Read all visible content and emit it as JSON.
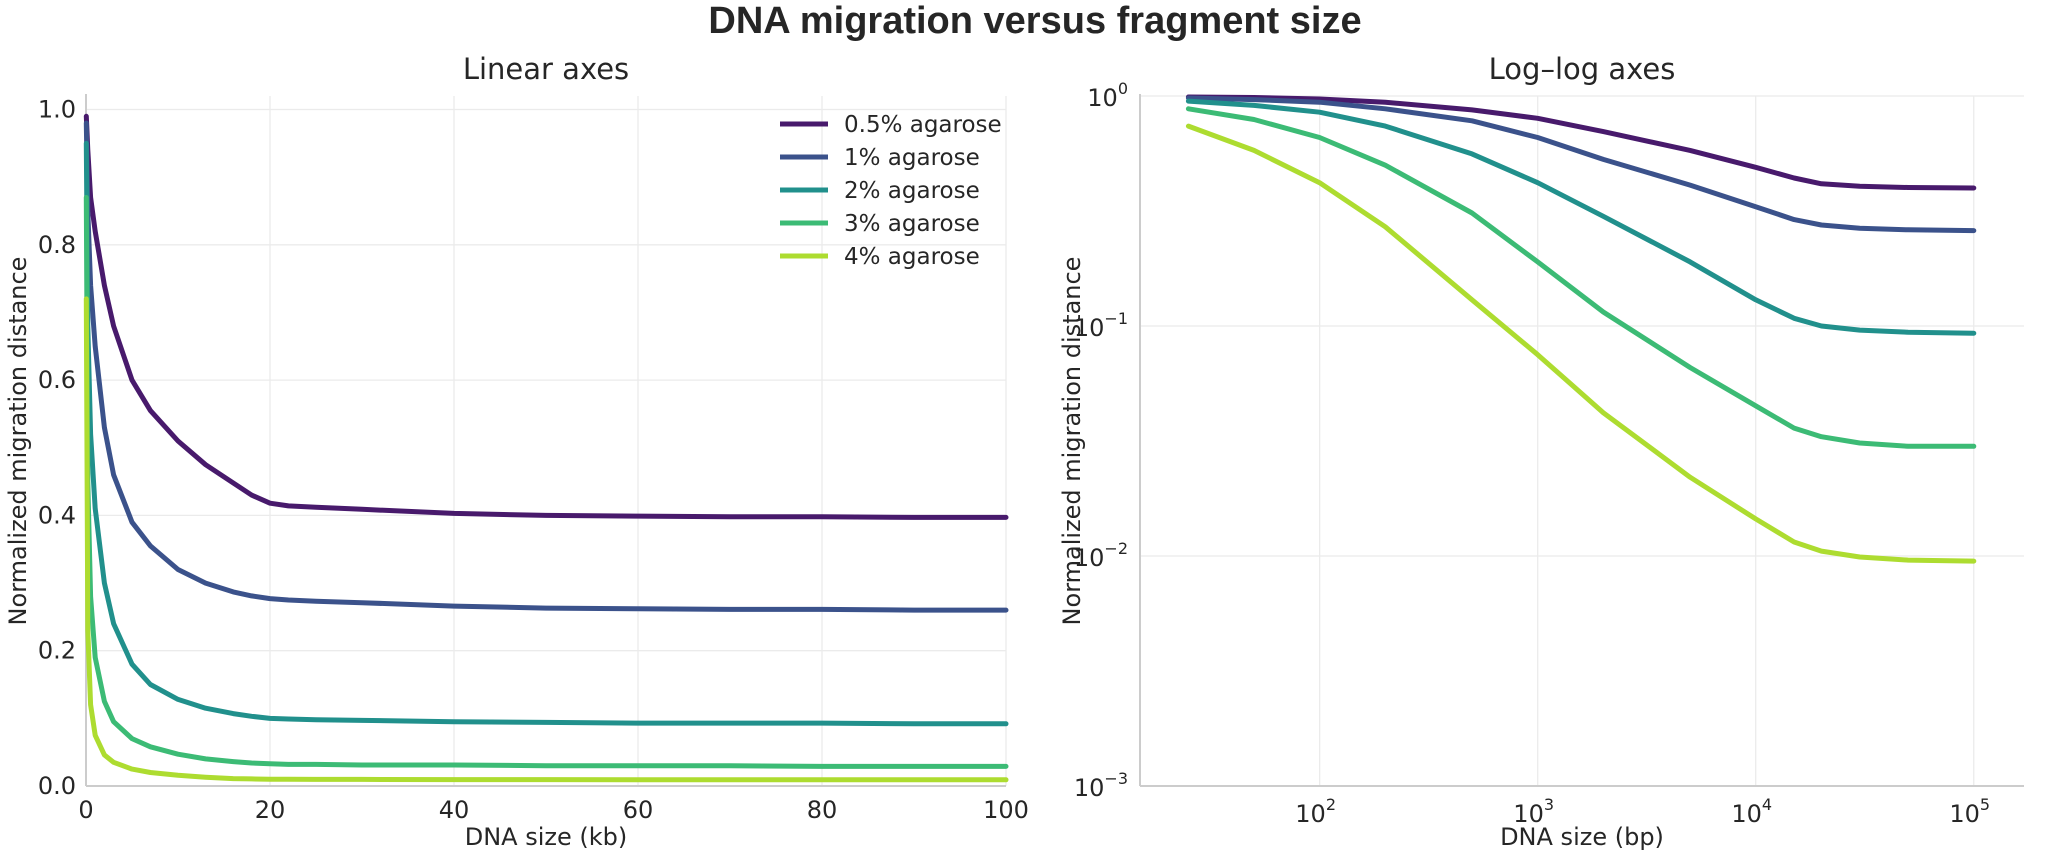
{
  "figure": {
    "title": "DNA migration versus fragment size"
  },
  "chart_data": [
    {
      "type": "line",
      "title": "Linear axes",
      "xlabel": "DNA size (kb)",
      "ylabel": "Normalized migration distance",
      "xscale": "linear",
      "yscale": "linear",
      "xlim": [
        0,
        100
      ],
      "ylim": [
        0,
        1.02
      ],
      "xticks": [
        0,
        20,
        40,
        60,
        80,
        100
      ],
      "xtick_labels": [
        "0",
        "20",
        "40",
        "60",
        "80",
        "100"
      ],
      "yticks": [
        0,
        0.2,
        0.4,
        0.6,
        0.8,
        1.0
      ],
      "ytick_labels": [
        "0.0",
        "0.2",
        "0.4",
        "0.6",
        "0.8",
        "1.0"
      ],
      "grid": true,
      "legend": "top-right",
      "series": [
        {
          "name": "0.5% agarose",
          "color": "#481a6c",
          "x": [
            0.03,
            0.2,
            0.5,
            1,
            2,
            3,
            5,
            7,
            10,
            13,
            16,
            18,
            20,
            22,
            25,
            30,
            40,
            50,
            60,
            70,
            80,
            90,
            100
          ],
          "y": [
            0.99,
            0.94,
            0.87,
            0.82,
            0.74,
            0.68,
            0.6,
            0.555,
            0.51,
            0.475,
            0.448,
            0.43,
            0.418,
            0.414,
            0.412,
            0.409,
            0.403,
            0.4,
            0.399,
            0.398,
            0.398,
            0.397,
            0.397
          ]
        },
        {
          "name": "1% agarose",
          "color": "#3b528b",
          "x": [
            0.03,
            0.2,
            0.5,
            1,
            2,
            3,
            5,
            7,
            10,
            13,
            16,
            18,
            20,
            22,
            25,
            30,
            40,
            50,
            60,
            70,
            80,
            90,
            100
          ],
          "y": [
            0.98,
            0.85,
            0.74,
            0.65,
            0.53,
            0.46,
            0.39,
            0.355,
            0.32,
            0.3,
            0.287,
            0.281,
            0.277,
            0.275,
            0.273,
            0.271,
            0.266,
            0.263,
            0.262,
            0.261,
            0.261,
            0.26,
            0.26
          ]
        },
        {
          "name": "2% agarose",
          "color": "#21908c",
          "x": [
            0.03,
            0.2,
            0.5,
            1,
            2,
            3,
            5,
            7,
            10,
            13,
            16,
            18,
            20,
            22,
            25,
            30,
            40,
            50,
            60,
            70,
            80,
            90,
            100
          ],
          "y": [
            0.95,
            0.68,
            0.52,
            0.41,
            0.3,
            0.24,
            0.18,
            0.15,
            0.128,
            0.115,
            0.107,
            0.103,
            0.1,
            0.099,
            0.098,
            0.097,
            0.095,
            0.094,
            0.093,
            0.093,
            0.093,
            0.092,
            0.092
          ]
        },
        {
          "name": "3% agarose",
          "color": "#3cbb75",
          "x": [
            0.03,
            0.2,
            0.5,
            1,
            2,
            3,
            5,
            7,
            10,
            13,
            16,
            18,
            20,
            22,
            25,
            30,
            40,
            50,
            60,
            70,
            80,
            90,
            100
          ],
          "y": [
            0.87,
            0.45,
            0.28,
            0.19,
            0.125,
            0.095,
            0.07,
            0.058,
            0.047,
            0.04,
            0.036,
            0.034,
            0.033,
            0.032,
            0.032,
            0.031,
            0.031,
            0.03,
            0.03,
            0.03,
            0.029,
            0.029,
            0.029
          ]
        },
        {
          "name": "4% agarose",
          "color": "#addc30",
          "x": [
            0.03,
            0.2,
            0.5,
            1,
            2,
            3,
            5,
            7,
            10,
            13,
            16,
            18,
            20,
            22,
            25,
            30,
            40,
            50,
            60,
            70,
            80,
            90,
            100
          ],
          "y": [
            0.72,
            0.23,
            0.12,
            0.075,
            0.046,
            0.035,
            0.025,
            0.02,
            0.016,
            0.013,
            0.011,
            0.0105,
            0.01,
            0.0099,
            0.0098,
            0.0097,
            0.0095,
            0.0094,
            0.0093,
            0.0093,
            0.0092,
            0.0092,
            0.0092
          ]
        }
      ]
    },
    {
      "type": "line",
      "title": "Log–log axes",
      "xlabel": "DNA size (bp)",
      "ylabel": "Normalized migration distance",
      "xscale": "log",
      "yscale": "log",
      "xlim": [
        15,
        170000
      ],
      "ylim": [
        0.001,
        1
      ],
      "xticks": [
        100,
        1000,
        10000,
        100000
      ],
      "xtick_labels": [
        {
          "base": "10",
          "exp": "2"
        },
        {
          "base": "10",
          "exp": "3"
        },
        {
          "base": "10",
          "exp": "4"
        },
        {
          "base": "10",
          "exp": "5"
        }
      ],
      "yticks": [
        0.001,
        0.01,
        0.1,
        1
      ],
      "ytick_labels": [
        {
          "base": "10",
          "exp": "−3"
        },
        {
          "base": "10",
          "exp": "−2"
        },
        {
          "base": "10",
          "exp": "−1"
        },
        {
          "base": "10",
          "exp": "0"
        }
      ],
      "grid": true,
      "series": [
        {
          "name": "0.5% agarose",
          "color": "#481a6c",
          "x": [
            25,
            50,
            100,
            200,
            500,
            1000,
            2000,
            5000,
            10000,
            15000,
            20000,
            30000,
            50000,
            100000
          ],
          "y": [
            0.99,
            0.985,
            0.97,
            0.94,
            0.87,
            0.8,
            0.7,
            0.58,
            0.49,
            0.44,
            0.415,
            0.405,
            0.4,
            0.398
          ]
        },
        {
          "name": "1% agarose",
          "color": "#3b528b",
          "x": [
            25,
            50,
            100,
            200,
            500,
            1000,
            2000,
            5000,
            10000,
            15000,
            20000,
            30000,
            50000,
            100000
          ],
          "y": [
            0.98,
            0.965,
            0.94,
            0.88,
            0.78,
            0.66,
            0.53,
            0.41,
            0.33,
            0.29,
            0.275,
            0.266,
            0.262,
            0.26
          ]
        },
        {
          "name": "2% agarose",
          "color": "#21908c",
          "x": [
            25,
            50,
            100,
            200,
            500,
            1000,
            2000,
            5000,
            10000,
            15000,
            20000,
            30000,
            50000,
            100000
          ],
          "y": [
            0.95,
            0.91,
            0.85,
            0.74,
            0.56,
            0.42,
            0.3,
            0.19,
            0.13,
            0.108,
            0.1,
            0.096,
            0.094,
            0.093
          ]
        },
        {
          "name": "3% agarose",
          "color": "#3cbb75",
          "x": [
            25,
            50,
            100,
            200,
            500,
            1000,
            2000,
            5000,
            10000,
            15000,
            20000,
            30000,
            50000,
            100000
          ],
          "y": [
            0.88,
            0.79,
            0.66,
            0.5,
            0.31,
            0.19,
            0.115,
            0.066,
            0.045,
            0.036,
            0.033,
            0.031,
            0.03,
            0.03
          ]
        },
        {
          "name": "4% agarose",
          "color": "#addc30",
          "x": [
            25,
            50,
            100,
            200,
            500,
            1000,
            2000,
            5000,
            10000,
            15000,
            20000,
            30000,
            50000,
            100000
          ],
          "y": [
            0.74,
            0.58,
            0.42,
            0.27,
            0.13,
            0.075,
            0.042,
            0.022,
            0.0145,
            0.0115,
            0.0105,
            0.0099,
            0.0096,
            0.0095
          ]
        }
      ]
    }
  ]
}
